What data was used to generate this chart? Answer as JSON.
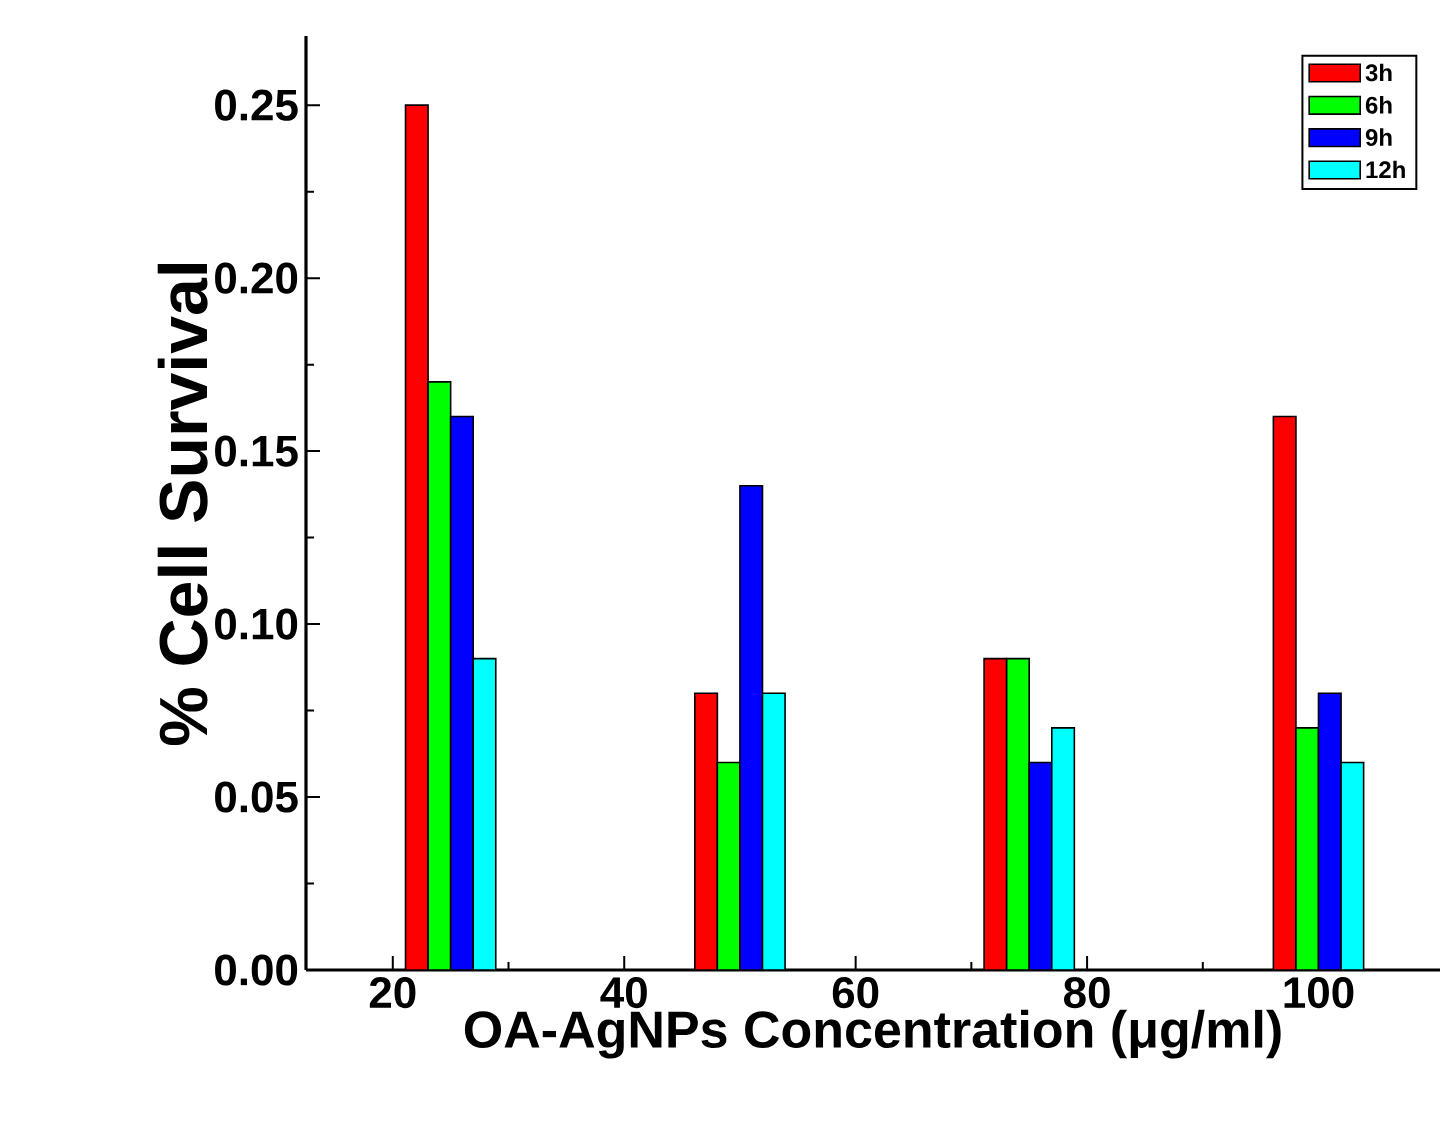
{
  "chart_data": {
    "type": "bar",
    "xlabel": "OA-AgNPs Concentration (μg/ml)",
    "ylabel": "% Cell Survival",
    "x": [
      25,
      50,
      75,
      100
    ],
    "series": [
      {
        "name": "3h",
        "color": "#ff0000",
        "values": [
          0.25,
          0.08,
          0.09,
          0.16
        ]
      },
      {
        "name": "6h",
        "color": "#00ff00",
        "values": [
          0.17,
          0.06,
          0.09,
          0.07
        ]
      },
      {
        "name": "9h",
        "color": "#0000ff",
        "values": [
          0.16,
          0.14,
          0.06,
          0.08
        ]
      },
      {
        "name": "12h",
        "color": "#00ffff",
        "values": [
          0.09,
          0.08,
          0.07,
          0.06
        ]
      }
    ],
    "xlim": [
      12.5,
      110.5
    ],
    "ylim": [
      0,
      0.27
    ],
    "xticks": [
      20,
      40,
      60,
      80,
      100
    ],
    "yticks": [
      {
        "value": 0,
        "label": "0.00"
      },
      {
        "value": 0.05,
        "label": "0.05"
      },
      {
        "value": 0.1,
        "label": "0.10"
      },
      {
        "value": 0.15,
        "label": "0.15"
      },
      {
        "value": 0.2,
        "label": "0.20"
      },
      {
        "value": 0.25,
        "label": "0.25"
      }
    ],
    "grid": false,
    "legend": "top right"
  }
}
